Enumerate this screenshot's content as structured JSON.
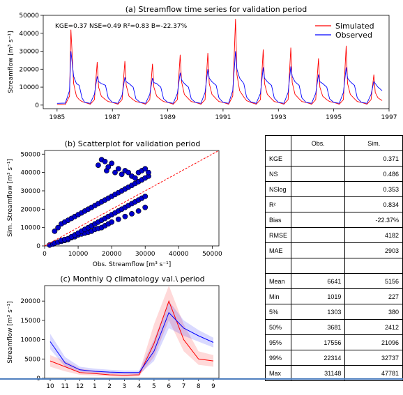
{
  "chart_data": [
    {
      "type": "line",
      "title": "(a) Streamflow time series for validation period",
      "ylabel": "Streamflow [m³ s⁻¹]",
      "annotation": "KGE=0.37  NSE=0.49  R²=0.83  B=-22.37%",
      "xlim": [
        1984.5,
        1997
      ],
      "ylim": [
        -2000,
        50000
      ],
      "xticks": [
        1985,
        1987,
        1989,
        1991,
        1993,
        1995,
        1997
      ],
      "xtick_labels": [
        "1985",
        "1987",
        "1989",
        "1991",
        "1993",
        "1995",
        "1997"
      ],
      "yticks": [
        0,
        10000,
        20000,
        30000,
        40000,
        50000
      ],
      "ytick_labels": [
        "0",
        "10000",
        "20000",
        "30000",
        "40000",
        "50000"
      ],
      "legend_position": "top-right",
      "series": [
        {
          "name": "Simulated",
          "color": "#ff0000",
          "x": [
            1985.0,
            1985.3,
            1985.45,
            1985.5,
            1985.6,
            1985.7,
            1985.8,
            1985.9,
            1986.0,
            1986.2,
            1986.35,
            1986.45,
            1986.5,
            1986.6,
            1986.75,
            1986.85,
            1987.0,
            1987.2,
            1987.35,
            1987.45,
            1987.5,
            1987.6,
            1987.75,
            1987.85,
            1988.0,
            1988.2,
            1988.35,
            1988.45,
            1988.5,
            1988.6,
            1988.75,
            1988.85,
            1989.0,
            1989.2,
            1989.35,
            1989.45,
            1989.5,
            1989.6,
            1989.75,
            1989.85,
            1990.0,
            1990.2,
            1990.35,
            1990.45,
            1990.5,
            1990.6,
            1990.75,
            1990.85,
            1991.0,
            1991.2,
            1991.35,
            1991.45,
            1991.5,
            1991.6,
            1991.75,
            1991.85,
            1992.0,
            1992.2,
            1992.35,
            1992.45,
            1992.5,
            1992.6,
            1992.75,
            1992.85,
            1993.0,
            1993.2,
            1993.35,
            1993.45,
            1993.5,
            1993.6,
            1993.75,
            1993.85,
            1994.0,
            1994.2,
            1994.35,
            1994.45,
            1994.5,
            1994.6,
            1994.75,
            1994.85,
            1995.0,
            1995.2,
            1995.35,
            1995.45,
            1995.5,
            1995.6,
            1995.75,
            1995.85,
            1996.0,
            1996.2,
            1996.35,
            1996.45,
            1996.5,
            1996.6,
            1996.75
          ],
          "y": [
            200,
            300,
            5000,
            42000,
            12000,
            5000,
            3000,
            2000,
            1500,
            500,
            3000,
            24000,
            10000,
            5000,
            3000,
            2000,
            1500,
            500,
            3000,
            24500,
            11000,
            5000,
            3000,
            2000,
            1500,
            500,
            3000,
            23000,
            10000,
            5000,
            3000,
            2000,
            1500,
            500,
            3000,
            28000,
            13000,
            6000,
            3500,
            2000,
            1500,
            500,
            3000,
            29000,
            12000,
            6000,
            3500,
            2000,
            1500,
            500,
            5000,
            48000,
            17000,
            8000,
            4500,
            2500,
            1500,
            500,
            3000,
            31000,
            12000,
            6000,
            3500,
            2000,
            1500,
            500,
            3000,
            32000,
            12500,
            6000,
            3500,
            2000,
            1500,
            500,
            3000,
            26000,
            10000,
            5000,
            3000,
            2000,
            1500,
            500,
            3000,
            33000,
            12000,
            6000,
            3500,
            2000,
            1500,
            500,
            3000,
            17000,
            7000,
            4000,
            2500
          ]
        },
        {
          "name": "Observed",
          "color": "#0000ff",
          "x": [
            1985.0,
            1985.3,
            1985.45,
            1985.5,
            1985.6,
            1985.7,
            1985.8,
            1985.9,
            1986.0,
            1986.2,
            1986.35,
            1986.45,
            1986.5,
            1986.6,
            1986.75,
            1986.85,
            1987.0,
            1987.2,
            1987.35,
            1987.45,
            1987.5,
            1987.6,
            1987.75,
            1987.85,
            1988.0,
            1988.2,
            1988.35,
            1988.45,
            1988.5,
            1988.6,
            1988.75,
            1988.85,
            1989.0,
            1989.2,
            1989.35,
            1989.45,
            1989.5,
            1989.6,
            1989.75,
            1989.85,
            1990.0,
            1990.2,
            1990.35,
            1990.45,
            1990.5,
            1990.6,
            1990.75,
            1990.85,
            1991.0,
            1991.2,
            1991.35,
            1991.45,
            1991.5,
            1991.6,
            1991.75,
            1991.85,
            1992.0,
            1992.2,
            1992.35,
            1992.45,
            1992.5,
            1992.6,
            1992.75,
            1992.85,
            1993.0,
            1993.2,
            1993.35,
            1993.45,
            1993.5,
            1993.6,
            1993.75,
            1993.85,
            1994.0,
            1994.2,
            1994.35,
            1994.45,
            1994.5,
            1994.6,
            1994.75,
            1994.85,
            1995.0,
            1995.2,
            1995.35,
            1995.45,
            1995.5,
            1995.6,
            1995.75,
            1995.85,
            1996.0,
            1996.2,
            1996.35,
            1996.45,
            1996.5,
            1996.6,
            1996.75
          ],
          "y": [
            1000,
            1100,
            8000,
            30000,
            16000,
            12000,
            11000,
            4000,
            1500,
            1000,
            6000,
            16000,
            13000,
            12000,
            11000,
            4000,
            1500,
            1000,
            5500,
            15500,
            13000,
            12000,
            10000,
            3500,
            1500,
            1000,
            6000,
            15000,
            12500,
            12000,
            10000,
            3500,
            1500,
            1000,
            6500,
            18000,
            14000,
            12000,
            10000,
            3500,
            1500,
            1000,
            7000,
            20000,
            15000,
            13000,
            11000,
            4000,
            1500,
            1000,
            8000,
            30000,
            20000,
            15000,
            12000,
            4500,
            1800,
            1000,
            6500,
            21000,
            15000,
            13000,
            11000,
            4000,
            1500,
            1000,
            7000,
            21500,
            16000,
            13000,
            11000,
            4000,
            1500,
            1000,
            6500,
            17000,
            13000,
            12000,
            10000,
            3500,
            1500,
            1000,
            7000,
            21000,
            15000,
            13000,
            11000,
            4000,
            1500,
            1000,
            6000,
            13000,
            12000,
            10000,
            8000
          ]
        }
      ]
    },
    {
      "type": "scatter",
      "title": "(b) Scatterplot for validation period",
      "xlabel": "Obs. Streamflow [m³ s⁻¹]",
      "ylabel": "Sim. Streamflow [m³ s⁻¹]",
      "xlim": [
        0,
        52000
      ],
      "ylim": [
        0,
        52000
      ],
      "xticks": [
        0,
        10000,
        20000,
        30000,
        40000,
        50000
      ],
      "xtick_labels": [
        "0",
        "10000",
        "20000",
        "30000",
        "40000",
        "50000"
      ],
      "yticks": [
        0,
        10000,
        20000,
        30000,
        40000,
        50000
      ],
      "ytick_labels": [
        "0",
        "10000",
        "20000",
        "30000",
        "40000",
        "50000"
      ],
      "marker_color": "#0000cc",
      "identity_line_color": "#ff0000",
      "x": [
        1500,
        2500,
        3000,
        4000,
        5000,
        6000,
        7000,
        8000,
        9000,
        10000,
        11000,
        12000,
        13000,
        14000,
        15000,
        16000,
        17000,
        18000,
        19000,
        20000,
        22000,
        24000,
        26000,
        28000,
        30000,
        3000,
        4000,
        5000,
        6000,
        7000,
        8000,
        9000,
        10000,
        11000,
        12000,
        13000,
        14000,
        15000,
        16000,
        17000,
        18000,
        19000,
        20000,
        21000,
        22000,
        23000,
        24000,
        25000,
        26000,
        27000,
        28000,
        29000,
        30000,
        31000,
        5000,
        6000,
        7000,
        8000,
        9000,
        10000,
        11000,
        12000,
        13000,
        14000,
        15000,
        16000,
        17000,
        18000,
        19000,
        20000,
        21000,
        22000,
        23000,
        24000,
        25000,
        26000,
        27000,
        28000,
        29000,
        30000,
        16000,
        17000,
        18000,
        18500,
        19000,
        20000,
        21000,
        22000,
        23000,
        24000,
        25000,
        26000,
        27000,
        28000,
        29000,
        30000,
        31000
      ],
      "y": [
        500,
        1000,
        1500,
        2000,
        2500,
        3000,
        3500,
        4500,
        5000,
        6000,
        6500,
        7000,
        7500,
        8000,
        9000,
        9500,
        10000,
        11000,
        12000,
        13000,
        14500,
        16000,
        17500,
        19000,
        21000,
        8000,
        10000,
        12000,
        13000,
        14000,
        15000,
        16000,
        17000,
        18000,
        19000,
        20000,
        21000,
        22000,
        23000,
        24000,
        25000,
        26000,
        27000,
        28000,
        29000,
        30000,
        31000,
        32000,
        33000,
        34000,
        35000,
        36000,
        37000,
        38000,
        3000,
        3500,
        4000,
        5000,
        6000,
        7000,
        8000,
        9000,
        10000,
        11000,
        12000,
        13000,
        14000,
        15000,
        16000,
        17000,
        18000,
        19000,
        20000,
        21000,
        22000,
        23000,
        24000,
        25000,
        26000,
        27000,
        44000,
        47000,
        46000,
        41000,
        43000,
        45000,
        40000,
        42000,
        39000,
        41000,
        40000,
        38000,
        37000,
        40000,
        41000,
        42000,
        40000
      ]
    },
    {
      "type": "line",
      "title": "(c) Monthly Q climatology val.\\ period",
      "ylabel": "Streamflow [m³ s⁻¹]",
      "categories": [
        "10",
        "11",
        "12",
        "1",
        "2",
        "3",
        "4",
        "5",
        "6",
        "7",
        "8",
        "9"
      ],
      "ylim": [
        0,
        24000
      ],
      "yticks": [
        0,
        5000,
        10000,
        15000,
        20000
      ],
      "ytick_labels": [
        "0",
        "5000",
        "10000",
        "15000",
        "20000"
      ],
      "series": [
        {
          "color": "#ff0000",
          "values": [
            4500,
            3000,
            1500,
            1200,
            900,
            800,
            900,
            9000,
            20000,
            10000,
            5000,
            4500
          ],
          "band_low": [
            3000,
            1800,
            900,
            700,
            500,
            400,
            500,
            5500,
            15000,
            7000,
            3500,
            3000
          ],
          "band_high": [
            6000,
            4500,
            2500,
            2000,
            1500,
            1400,
            1500,
            14000,
            24000,
            14000,
            7000,
            6000
          ]
        },
        {
          "color": "#0000ff",
          "values": [
            9500,
            4000,
            2200,
            1800,
            1600,
            1500,
            1500,
            7000,
            17000,
            13000,
            11000,
            9300
          ],
          "band_low": [
            7500,
            3000,
            1600,
            1300,
            1100,
            1000,
            1000,
            4500,
            13000,
            11000,
            9500,
            8000
          ],
          "band_high": [
            11500,
            5500,
            3000,
            2500,
            2200,
            2000,
            2000,
            10000,
            20000,
            15000,
            12500,
            10500
          ]
        }
      ]
    }
  ],
  "stats_table": {
    "header": [
      "",
      "Obs.",
      "Sim."
    ],
    "rows": [
      {
        "label": "KGE",
        "obs": "",
        "sim": "0.371"
      },
      {
        "label": "NS",
        "obs": "",
        "sim": "0.486"
      },
      {
        "label": "NSlog",
        "obs": "",
        "sim": "0.353"
      },
      {
        "label": "R²",
        "obs": "",
        "sim": "0.834"
      },
      {
        "label": "Bias",
        "obs": "",
        "sim": "-22.37%"
      },
      {
        "label": "RMSE",
        "obs": "",
        "sim": "4182"
      },
      {
        "label": "MAE",
        "obs": "",
        "sim": "2903"
      },
      {
        "label": "",
        "obs": "",
        "sim": ""
      },
      {
        "label": "Mean",
        "obs": "6641",
        "sim": "5156"
      },
      {
        "label": "Min",
        "obs": "1019",
        "sim": "227"
      },
      {
        "label": "5%",
        "obs": "1303",
        "sim": "380"
      },
      {
        "label": "50%",
        "obs": "3681",
        "sim": "2412"
      },
      {
        "label": "95%",
        "obs": "17556",
        "sim": "21096"
      },
      {
        "label": "99%",
        "obs": "22314",
        "sim": "32737"
      },
      {
        "label": "Max",
        "obs": "31148",
        "sim": "47781"
      }
    ]
  }
}
